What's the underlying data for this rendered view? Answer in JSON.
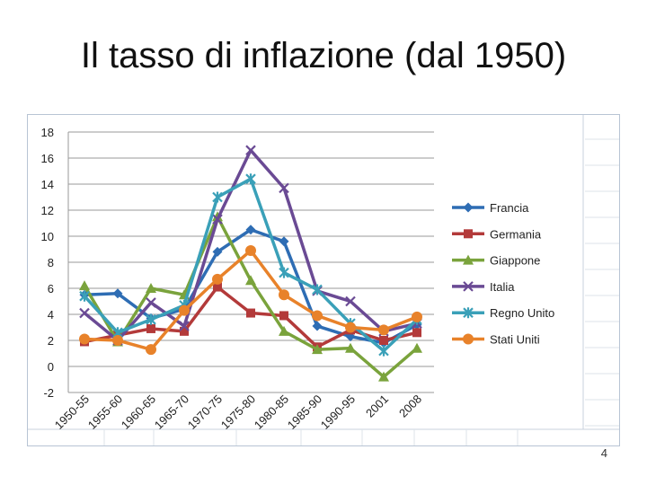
{
  "slide": {
    "title": "Il tasso di inflazione (dal 1950)",
    "page_number": "4"
  },
  "chart_data": {
    "type": "line",
    "title": "",
    "xlabel": "",
    "ylabel": "",
    "ylim": [
      -2,
      18
    ],
    "yticks": [
      -2,
      0,
      2,
      4,
      6,
      8,
      10,
      12,
      14,
      16,
      18
    ],
    "grid": "horizontal",
    "legend_position": "right",
    "categories": [
      "1950-55",
      "1955-60",
      "1960-65",
      "1965-70",
      "1970-75",
      "1975-80",
      "1980-85",
      "1985-90",
      "1990-95",
      "2001",
      "2008"
    ],
    "series": [
      {
        "name": "Francia",
        "color": "#2e6db4",
        "marker": "diamond",
        "values": [
          5.5,
          5.6,
          3.7,
          4.4,
          8.8,
          10.5,
          9.6,
          3.1,
          2.3,
          1.8,
          3.2
        ]
      },
      {
        "name": "Germania",
        "color": "#b33a3a",
        "marker": "square",
        "values": [
          1.9,
          2.4,
          2.9,
          2.7,
          6.1,
          4.1,
          3.9,
          1.5,
          2.8,
          2.0,
          2.6
        ]
      },
      {
        "name": "Giappone",
        "color": "#7aa33c",
        "marker": "triangle",
        "values": [
          6.2,
          1.9,
          6.0,
          5.5,
          11.5,
          6.6,
          2.7,
          1.3,
          1.4,
          -0.8,
          1.4
        ]
      },
      {
        "name": "Italia",
        "color": "#6a4a94",
        "marker": "x",
        "values": [
          4.1,
          2.0,
          4.9,
          3.1,
          11.3,
          16.6,
          13.7,
          5.8,
          5.0,
          2.7,
          3.3
        ]
      },
      {
        "name": "Regno Unito",
        "color": "#3aa0b8",
        "marker": "star",
        "values": [
          5.4,
          2.6,
          3.6,
          4.7,
          13.0,
          14.4,
          7.2,
          5.9,
          3.3,
          1.2,
          3.6
        ]
      },
      {
        "name": "Stati Uniti",
        "color": "#e8822a",
        "marker": "circle",
        "values": [
          2.1,
          2.0,
          1.3,
          4.3,
          6.7,
          8.9,
          5.5,
          3.9,
          3.0,
          2.8,
          3.8
        ]
      }
    ]
  }
}
